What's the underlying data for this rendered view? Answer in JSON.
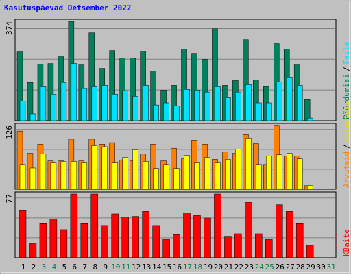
{
  "title": "Kasutuspäevad Detsember 2022",
  "separator": "/",
  "chart_data": [
    {
      "type": "bar",
      "ylim": [
        0,
        374
      ],
      "yticks": [
        374
      ],
      "series": [
        {
          "name": "Pöördumisi",
          "color": "#00805c",
          "values": [
            259,
            144,
            213,
            215,
            241,
            374,
            210,
            331,
            197,
            264,
            236,
            236,
            262,
            187,
            115,
            133,
            269,
            251,
            231,
            346,
            133,
            151,
            305,
            154,
            128,
            290,
            269,
            210,
            79,
            null,
            null
          ]
        },
        {
          "name": "Faile",
          "color": "#00e0ff",
          "values": [
            74,
            26,
            128,
            100,
            144,
            215,
            121,
            128,
            133,
            100,
            113,
            92,
            133,
            59,
            67,
            56,
            118,
            115,
            108,
            128,
            87,
            108,
            136,
            67,
            67,
            146,
            162,
            133,
            10,
            null,
            null
          ]
        }
      ]
    },
    {
      "type": "bar",
      "ylim": [
        0,
        126
      ],
      "yticks": [
        126
      ],
      "series": [
        {
          "name": "Arvuteid",
          "color": "#ff8000",
          "values": [
            115,
            71,
            89,
            56,
            56,
            99,
            56,
            99,
            89,
            92,
            58,
            56,
            70,
            89,
            56,
            81,
            60,
            97,
            89,
            59,
            74,
            71,
            108,
            90,
            49,
            125,
            66,
            66,
            7,
            null,
            null
          ]
        },
        {
          "name": "Külastusi",
          "color": "#ffff00",
          "values": [
            49,
            42,
            70,
            52,
            55,
            55,
            52,
            86,
            84,
            52,
            63,
            78,
            55,
            41,
            49,
            41,
            67,
            52,
            63,
            52,
            59,
            79,
            101,
            49,
            66,
            68,
            71,
            60,
            7,
            null,
            null
          ]
        }
      ]
    },
    {
      "type": "bar",
      "ylim": [
        0,
        77
      ],
      "yticks": [
        77
      ],
      "categories": [
        "1",
        "2",
        "3",
        "4",
        "5",
        "6",
        "7",
        "8",
        "9",
        "10",
        "11",
        "12",
        "13",
        "14",
        "15",
        "16",
        "17",
        "18",
        "19",
        "20",
        "21",
        "22",
        "23",
        "24",
        "25",
        "26",
        "27",
        "28",
        "29",
        "30",
        "31"
      ],
      "series": [
        {
          "name": "KBaite",
          "color": "#ff0000",
          "values": [
            57,
            17,
            42,
            47,
            34,
            77,
            42,
            77,
            39,
            53,
            49,
            50,
            56,
            39,
            22,
            28,
            54,
            51,
            48,
            77,
            26,
            29,
            67,
            29,
            22,
            64,
            56,
            42,
            15,
            null,
            null
          ]
        }
      ]
    }
  ]
}
